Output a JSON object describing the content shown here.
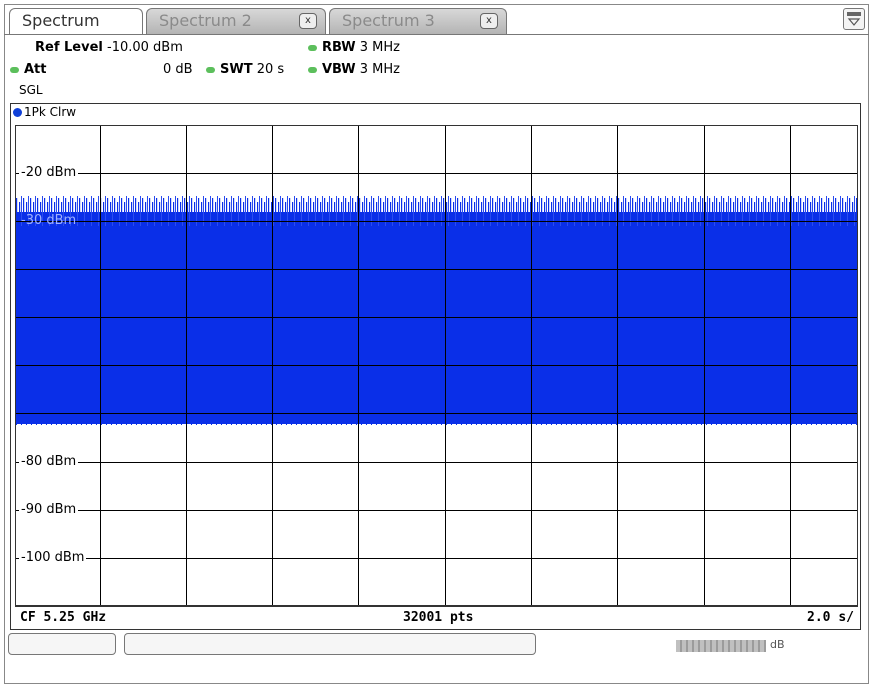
{
  "tabs": [
    {
      "label": "Spectrum",
      "active": true
    },
    {
      "label": "Spectrum 2",
      "active": false,
      "close": "x"
    },
    {
      "label": "Spectrum 3",
      "active": false,
      "close": "x"
    }
  ],
  "settings": {
    "ref_level_label": "Ref Level",
    "ref_level_value": "-10.00 dBm",
    "att_label": "Att",
    "att_value": "0 dB",
    "swt_label": "SWT",
    "swt_value": "20 s",
    "rbw_label": "RBW",
    "rbw_value": "3 MHz",
    "vbw_label": "VBW",
    "vbw_value": "3 MHz",
    "sweep_mode": "SGL"
  },
  "trace": {
    "label": "1Pk Clrw",
    "color": "#1040d8"
  },
  "diagram": {
    "y_labels": [
      "-20 dBm",
      "-30 dBm",
      "-80 dBm",
      "-90 dBm",
      "-100 dBm"
    ],
    "trace_color": "#0a2fe8"
  },
  "footer": {
    "center_freq": "CF 5.25 GHz",
    "points": "32001 pts",
    "time_per_div": "2.0 s/"
  },
  "status": {
    "meter_label": "dB"
  }
}
